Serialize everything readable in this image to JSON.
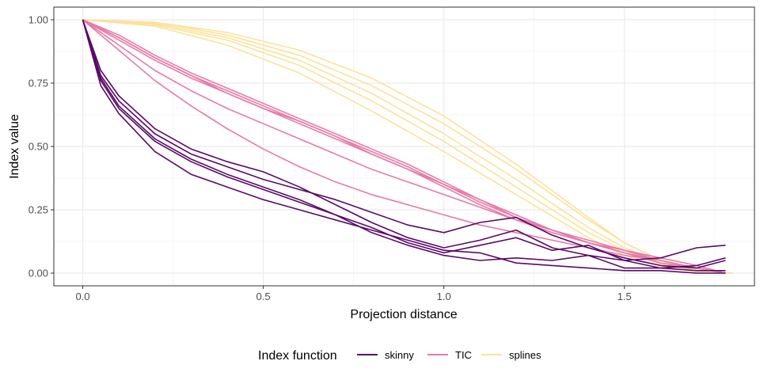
{
  "chart_data": {
    "type": "line",
    "xlabel": "Projection distance",
    "ylabel": "Index value",
    "xlim": [
      -0.08,
      1.86
    ],
    "ylim": [
      -0.05,
      1.05
    ],
    "x_ticks": [
      0.0,
      0.5,
      1.0,
      1.5
    ],
    "x_tick_labels": [
      "0.0",
      "0.5",
      "1.0",
      "1.5"
    ],
    "y_ticks": [
      0.0,
      0.25,
      0.5,
      0.75,
      1.0
    ],
    "y_tick_labels": [
      "0.00",
      "0.25",
      "0.50",
      "0.75",
      "1.00"
    ],
    "grid": true,
    "legend": {
      "title": "Index function",
      "position": "bottom",
      "entries": [
        {
          "name": "skinny",
          "color": "#5a0a69"
        },
        {
          "name": "TIC",
          "color": "#e77aa9"
        },
        {
          "name": "splines",
          "color": "#fbe29a"
        }
      ]
    },
    "series": [
      {
        "group": "splines",
        "x": [
          0,
          0.2,
          0.4,
          0.6,
          0.8,
          1.0,
          1.2,
          1.4,
          1.5,
          1.6,
          1.7,
          1.8
        ],
        "y": [
          1.0,
          0.99,
          0.95,
          0.88,
          0.77,
          0.62,
          0.43,
          0.22,
          0.12,
          0.05,
          0.01,
          0.0
        ]
      },
      {
        "group": "splines",
        "x": [
          0,
          0.2,
          0.4,
          0.6,
          0.8,
          1.0,
          1.2,
          1.4,
          1.5,
          1.6,
          1.7,
          1.8
        ],
        "y": [
          1.0,
          0.985,
          0.93,
          0.84,
          0.71,
          0.55,
          0.37,
          0.18,
          0.1,
          0.04,
          0.01,
          0.0
        ]
      },
      {
        "group": "splines",
        "x": [
          0,
          0.2,
          0.4,
          0.6,
          0.8,
          1.0,
          1.2,
          1.4,
          1.5,
          1.6,
          1.7,
          1.8
        ],
        "y": [
          1.0,
          0.98,
          0.92,
          0.82,
          0.68,
          0.52,
          0.34,
          0.16,
          0.09,
          0.035,
          0.01,
          0.0
        ]
      },
      {
        "group": "splines",
        "x": [
          0,
          0.2,
          0.4,
          0.6,
          0.8,
          1.0,
          1.2,
          1.4,
          1.5,
          1.6,
          1.7,
          1.8
        ],
        "y": [
          1.0,
          0.975,
          0.9,
          0.79,
          0.64,
          0.48,
          0.31,
          0.14,
          0.07,
          0.03,
          0.005,
          0.0
        ]
      },
      {
        "group": "splines",
        "x": [
          0,
          0.2,
          0.4,
          0.6,
          0.8,
          1.0,
          1.2,
          1.4,
          1.5,
          1.6,
          1.7,
          1.8
        ],
        "y": [
          1.0,
          0.99,
          0.94,
          0.86,
          0.74,
          0.59,
          0.41,
          0.21,
          0.12,
          0.05,
          0.01,
          0.0
        ]
      },
      {
        "group": "TIC",
        "x": [
          0,
          0.1,
          0.2,
          0.3,
          0.4,
          0.5,
          0.6,
          0.7,
          0.8,
          0.9,
          1.0,
          1.1,
          1.2,
          1.3,
          1.4,
          1.5,
          1.6,
          1.7,
          1.78
        ],
        "y": [
          1.0,
          0.93,
          0.85,
          0.78,
          0.71,
          0.65,
          0.59,
          0.53,
          0.47,
          0.41,
          0.34,
          0.27,
          0.21,
          0.16,
          0.12,
          0.08,
          0.05,
          0.02,
          0.0
        ]
      },
      {
        "group": "TIC",
        "x": [
          0,
          0.1,
          0.2,
          0.3,
          0.4,
          0.5,
          0.6,
          0.7,
          0.8,
          0.9,
          1.0,
          1.1,
          1.2,
          1.3,
          1.4,
          1.5,
          1.6,
          1.7,
          1.78
        ],
        "y": [
          1.0,
          0.94,
          0.86,
          0.79,
          0.73,
          0.67,
          0.61,
          0.55,
          0.49,
          0.43,
          0.36,
          0.29,
          0.22,
          0.17,
          0.12,
          0.08,
          0.05,
          0.02,
          0.0
        ]
      },
      {
        "group": "TIC",
        "x": [
          0,
          0.1,
          0.2,
          0.3,
          0.4,
          0.5,
          0.6,
          0.7,
          0.8,
          0.9,
          1.0,
          1.1,
          1.2,
          1.3,
          1.4,
          1.5,
          1.6,
          1.7,
          1.78
        ],
        "y": [
          1.0,
          0.92,
          0.84,
          0.77,
          0.71,
          0.65,
          0.6,
          0.54,
          0.48,
          0.42,
          0.35,
          0.28,
          0.22,
          0.17,
          0.12,
          0.09,
          0.05,
          0.02,
          0.0
        ]
      },
      {
        "group": "TIC",
        "x": [
          0,
          0.1,
          0.2,
          0.3,
          0.4,
          0.5,
          0.6,
          0.7,
          0.8,
          0.9,
          1.0,
          1.1,
          1.2,
          1.3,
          1.4,
          1.5,
          1.6,
          1.7,
          1.78
        ],
        "y": [
          1.0,
          0.9,
          0.8,
          0.72,
          0.65,
          0.59,
          0.53,
          0.47,
          0.41,
          0.36,
          0.31,
          0.26,
          0.21,
          0.17,
          0.13,
          0.09,
          0.06,
          0.03,
          0.0
        ]
      },
      {
        "group": "TIC",
        "x": [
          0,
          0.1,
          0.2,
          0.3,
          0.4,
          0.5,
          0.6,
          0.7,
          0.8,
          0.9,
          1.0,
          1.1,
          1.2,
          1.3,
          1.4,
          1.5,
          1.6,
          1.7,
          1.78
        ],
        "y": [
          1.0,
          0.88,
          0.76,
          0.66,
          0.57,
          0.49,
          0.42,
          0.36,
          0.31,
          0.27,
          0.23,
          0.19,
          0.16,
          0.13,
          0.1,
          0.07,
          0.05,
          0.02,
          0.0
        ]
      },
      {
        "group": "TIC",
        "x": [
          0,
          0.1,
          0.2,
          0.3,
          0.4,
          0.5,
          0.6,
          0.7,
          0.8,
          0.9,
          1.0,
          1.1,
          1.2,
          1.3,
          1.4,
          1.5,
          1.6,
          1.7,
          1.78
        ],
        "y": [
          1.0,
          0.93,
          0.85,
          0.78,
          0.72,
          0.66,
          0.6,
          0.54,
          0.47,
          0.41,
          0.35,
          0.29,
          0.23,
          0.17,
          0.12,
          0.08,
          0.04,
          0.02,
          0.0
        ]
      },
      {
        "group": "skinny",
        "x": [
          0,
          0.05,
          0.1,
          0.2,
          0.3,
          0.4,
          0.5,
          0.6,
          0.7,
          0.8,
          0.9,
          1.0,
          1.1,
          1.2,
          1.3,
          1.4,
          1.5,
          1.6,
          1.7,
          1.78
        ],
        "y": [
          1.0,
          0.78,
          0.68,
          0.55,
          0.47,
          0.42,
          0.37,
          0.33,
          0.29,
          0.24,
          0.19,
          0.16,
          0.2,
          0.22,
          0.15,
          0.1,
          0.06,
          0.03,
          0.02,
          0.05
        ]
      },
      {
        "group": "skinny",
        "x": [
          0,
          0.05,
          0.1,
          0.2,
          0.3,
          0.4,
          0.5,
          0.6,
          0.7,
          0.8,
          0.9,
          1.0,
          1.1,
          1.2,
          1.3,
          1.4,
          1.5,
          1.6,
          1.7,
          1.78
        ],
        "y": [
          1.0,
          0.8,
          0.7,
          0.57,
          0.49,
          0.44,
          0.4,
          0.34,
          0.27,
          0.2,
          0.14,
          0.1,
          0.13,
          0.17,
          0.1,
          0.07,
          0.05,
          0.02,
          0.03,
          0.06
        ]
      },
      {
        "group": "skinny",
        "x": [
          0,
          0.05,
          0.1,
          0.2,
          0.3,
          0.4,
          0.5,
          0.6,
          0.7,
          0.8,
          0.9,
          1.0,
          1.1,
          1.2,
          1.3,
          1.4,
          1.5,
          1.6,
          1.7,
          1.78
        ],
        "y": [
          1.0,
          0.76,
          0.65,
          0.52,
          0.44,
          0.38,
          0.33,
          0.28,
          0.23,
          0.18,
          0.12,
          0.08,
          0.11,
          0.14,
          0.09,
          0.11,
          0.05,
          0.06,
          0.1,
          0.11
        ]
      },
      {
        "group": "skinny",
        "x": [
          0,
          0.05,
          0.1,
          0.2,
          0.3,
          0.4,
          0.5,
          0.6,
          0.7,
          0.8,
          0.9,
          1.0,
          1.1,
          1.2,
          1.3,
          1.4,
          1.5,
          1.6,
          1.7,
          1.78
        ],
        "y": [
          1.0,
          0.74,
          0.63,
          0.48,
          0.39,
          0.34,
          0.29,
          0.25,
          0.21,
          0.17,
          0.13,
          0.09,
          0.08,
          0.04,
          0.03,
          0.02,
          0.01,
          0.01,
          0.0,
          0.0
        ]
      },
      {
        "group": "skinny",
        "x": [
          0,
          0.05,
          0.1,
          0.2,
          0.3,
          0.4,
          0.5,
          0.6,
          0.7,
          0.8,
          0.9,
          1.0,
          1.1,
          1.2,
          1.3,
          1.4,
          1.5,
          1.6,
          1.7,
          1.78
        ],
        "y": [
          1.0,
          0.77,
          0.66,
          0.53,
          0.45,
          0.39,
          0.34,
          0.29,
          0.23,
          0.16,
          0.11,
          0.07,
          0.05,
          0.06,
          0.05,
          0.07,
          0.02,
          0.02,
          0.01,
          0.01
        ]
      }
    ]
  }
}
